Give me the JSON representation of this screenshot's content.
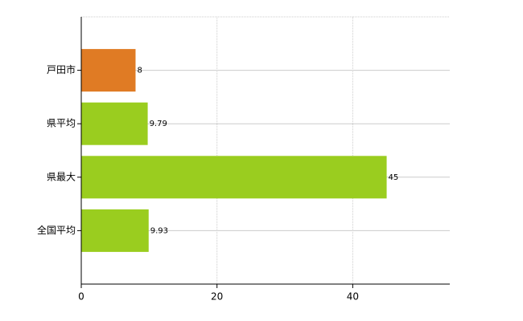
{
  "chart_data": {
    "type": "bar",
    "orientation": "horizontal",
    "categories": [
      "戸田市",
      "県平均",
      "県最大",
      "全国平均"
    ],
    "values": [
      8,
      9.79,
      45,
      9.93
    ],
    "colors": [
      "#e07b24",
      "#9acd1f",
      "#9acd1f",
      "#9acd1f"
    ],
    "xlim": [
      0,
      54.3
    ],
    "xticks": [
      0,
      20,
      40
    ],
    "grid": true
  }
}
